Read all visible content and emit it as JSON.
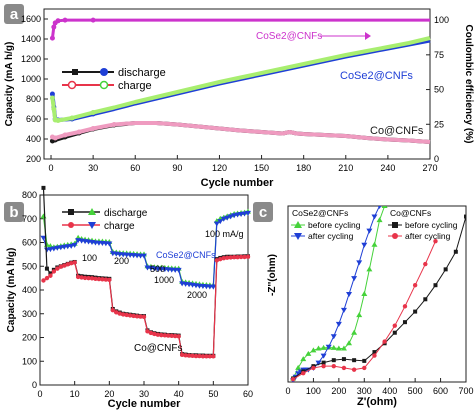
{
  "colors": {
    "black": "#1a1a1a",
    "blue": "#1f3fd6",
    "red": "#e8344a",
    "green": "#45d23a",
    "magenta": "#cc33cc",
    "pink": "#ef9bc0",
    "lightgreen": "#a8ee70",
    "panel_label_bg": "#8a8a8a"
  },
  "chart_data": [
    {
      "panel": "a",
      "type": "line",
      "xlabel": "Cycle number",
      "ylabel": "Capacity (mA h/g)",
      "y2label": "Coulombic efficiency (%)",
      "xlim": [
        -5,
        270
      ],
      "ylim": [
        200,
        1700
      ],
      "y2lim": [
        0,
        108
      ],
      "xticks": [
        "0",
        "30",
        "60",
        "90",
        "120",
        "150",
        "180",
        "210",
        "240",
        "270"
      ],
      "yticks": [
        "200",
        "400",
        "600",
        "800",
        "1000",
        "1200",
        "1400",
        "1600"
      ],
      "y2ticks": [
        "0",
        "25",
        "50",
        "75",
        "100"
      ],
      "legend": [
        "discharge",
        "charge"
      ],
      "grid": false,
      "annotations": [
        "CoSe2@CNFs",
        "CoSe2@CNFs",
        "Co@CNFs"
      ],
      "series": [
        {
          "name": "CoSe2@CNFs",
          "axis": "right",
          "color": "#cc33cc",
          "x": [
            1,
            2,
            3,
            5,
            10,
            30,
            60,
            90,
            120,
            150,
            180,
            210,
            240,
            270
          ],
          "values": [
            87,
            95,
            98,
            99.5,
            100,
            100,
            100,
            100,
            100,
            100,
            100,
            100,
            100,
            100
          ]
        },
        {
          "name": "CoSe2@CNFs",
          "kind": "discharge",
          "color": "#1f3fd6",
          "x": [
            1,
            2,
            3,
            5,
            15,
            30,
            45,
            60,
            75,
            90,
            105,
            120,
            135,
            150,
            165,
            180,
            195,
            210,
            225,
            240,
            255,
            270
          ],
          "values": [
            850,
            720,
            600,
            590,
            600,
            650,
            700,
            755,
            805,
            855,
            905,
            955,
            1000,
            1045,
            1090,
            1135,
            1180,
            1225,
            1265,
            1305,
            1345,
            1385
          ]
        },
        {
          "name": "CoSe2@CNFs",
          "kind": "charge",
          "color": "#a8ee70",
          "x": [
            1,
            2,
            3,
            5,
            15,
            30,
            45,
            60,
            75,
            90,
            105,
            120,
            135,
            150,
            165,
            180,
            195,
            210,
            225,
            240,
            255,
            270
          ],
          "values": [
            810,
            700,
            590,
            585,
            610,
            665,
            715,
            770,
            820,
            870,
            920,
            970,
            1015,
            1060,
            1105,
            1150,
            1195,
            1240,
            1280,
            1320,
            1360,
            1410
          ]
        },
        {
          "name": "Co@CNFs",
          "kind": "discharge",
          "color": "#1a1a1a",
          "x": [
            1,
            3,
            10,
            20,
            30,
            45,
            60,
            75,
            90,
            105,
            120,
            135,
            150,
            165,
            170,
            175,
            180,
            195,
            210,
            225,
            240,
            255,
            270
          ],
          "values": [
            380,
            390,
            420,
            460,
            500,
            540,
            560,
            560,
            545,
            525,
            505,
            485,
            470,
            455,
            470,
            455,
            450,
            440,
            430,
            410,
            395,
            385,
            370
          ]
        },
        {
          "name": "Co@CNFs",
          "kind": "charge",
          "color": "#ef9bc0",
          "x": [
            1,
            3,
            10,
            20,
            30,
            45,
            60,
            75,
            90,
            105,
            120,
            135,
            150,
            165,
            170,
            175,
            180,
            195,
            210,
            225,
            240,
            255,
            270
          ],
          "values": [
            420,
            410,
            440,
            470,
            505,
            545,
            560,
            560,
            545,
            525,
            505,
            485,
            470,
            455,
            470,
            455,
            450,
            440,
            430,
            410,
            395,
            385,
            370
          ]
        }
      ]
    },
    {
      "panel": "b",
      "type": "line",
      "xlabel": "Cycle number",
      "ylabel": "Capacity (mA h/g)",
      "xlim": [
        0,
        60
      ],
      "ylim": [
        0,
        800
      ],
      "xticks": [
        "0",
        "10",
        "20",
        "30",
        "40",
        "50",
        "60"
      ],
      "yticks": [
        "0",
        "100",
        "200",
        "300",
        "400",
        "500",
        "600",
        "700",
        "800"
      ],
      "legend": [
        "discharge",
        "charge"
      ],
      "grid": false,
      "rate_labels": [
        "100",
        "200",
        "500",
        "1000",
        "2000",
        "100 mA/g"
      ],
      "annotations": [
        "CoSe2@CNFs",
        "Co@CNFs"
      ],
      "series": [
        {
          "name": "CoSe2@CNFs",
          "kind": "discharge",
          "color": "#45d23a",
          "x": [
            1,
            2,
            3,
            4,
            5,
            6,
            7,
            8,
            9,
            10,
            11,
            12,
            13,
            14,
            15,
            16,
            17,
            18,
            19,
            20,
            21,
            22,
            23,
            24,
            25,
            26,
            27,
            28,
            29,
            30,
            31,
            32,
            33,
            34,
            35,
            36,
            37,
            38,
            39,
            40,
            41,
            42,
            43,
            44,
            45,
            46,
            47,
            48,
            49,
            50,
            51,
            52,
            53,
            54,
            55,
            56,
            57,
            58,
            59,
            60
          ],
          "values": [
            710,
            590,
            585,
            580,
            582,
            585,
            588,
            590,
            592,
            595,
            620,
            615,
            612,
            610,
            608,
            605,
            605,
            604,
            603,
            602,
            560,
            558,
            556,
            555,
            554,
            553,
            552,
            551,
            550,
            550,
            500,
            498,
            496,
            495,
            494,
            493,
            492,
            491,
            490,
            490,
            435,
            432,
            430,
            428,
            426,
            424,
            422,
            421,
            420,
            420,
            690,
            700,
            705,
            710,
            715,
            720,
            722,
            724,
            726,
            730
          ]
        },
        {
          "name": "CoSe2@CNFs",
          "kind": "charge",
          "color": "#1f3fd6",
          "x": [
            1,
            2,
            3,
            4,
            5,
            6,
            7,
            8,
            9,
            10,
            11,
            12,
            13,
            14,
            15,
            16,
            17,
            18,
            19,
            20,
            21,
            22,
            23,
            24,
            25,
            26,
            27,
            28,
            29,
            30,
            31,
            32,
            33,
            34,
            35,
            36,
            37,
            38,
            39,
            40,
            41,
            42,
            43,
            44,
            45,
            46,
            47,
            48,
            49,
            50,
            51,
            52,
            53,
            54,
            55,
            56,
            57,
            58,
            59,
            60
          ],
          "values": [
            620,
            570,
            572,
            575,
            578,
            580,
            582,
            584,
            586,
            590,
            610,
            608,
            606,
            604,
            602,
            600,
            599,
            598,
            597,
            596,
            555,
            553,
            551,
            550,
            549,
            548,
            547,
            546,
            545,
            545,
            495,
            493,
            491,
            490,
            489,
            488,
            487,
            486,
            485,
            485,
            428,
            426,
            424,
            422,
            420,
            418,
            417,
            416,
            415,
            414,
            680,
            690,
            700,
            705,
            710,
            715,
            718,
            720,
            722,
            725
          ]
        },
        {
          "name": "Co@CNFs",
          "kind": "discharge",
          "color": "#1a1a1a",
          "x": [
            1,
            2,
            3,
            4,
            5,
            6,
            7,
            8,
            9,
            10,
            11,
            12,
            13,
            14,
            15,
            16,
            17,
            18,
            19,
            20,
            21,
            22,
            23,
            24,
            25,
            26,
            27,
            28,
            29,
            30,
            31,
            32,
            33,
            34,
            35,
            36,
            37,
            38,
            39,
            40,
            41,
            42,
            43,
            44,
            45,
            46,
            47,
            48,
            49,
            50,
            51,
            52,
            53,
            54,
            55,
            56,
            57,
            58,
            59,
            60
          ],
          "values": [
            830,
            490,
            470,
            485,
            495,
            500,
            505,
            510,
            515,
            518,
            460,
            458,
            456,
            455,
            454,
            452,
            450,
            449,
            448,
            447,
            320,
            310,
            305,
            300,
            298,
            296,
            294,
            292,
            290,
            290,
            230,
            222,
            218,
            215,
            213,
            212,
            210,
            210,
            209,
            208,
            130,
            128,
            126,
            125,
            125,
            124,
            124,
            123,
            123,
            123,
            530,
            535,
            538,
            540,
            540,
            540,
            541,
            541,
            542,
            542
          ]
        },
        {
          "name": "Co@CNFs",
          "kind": "charge",
          "color": "#e8344a",
          "x": [
            1,
            2,
            3,
            4,
            5,
            6,
            7,
            8,
            9,
            10,
            11,
            12,
            13,
            14,
            15,
            16,
            17,
            18,
            19,
            20,
            21,
            22,
            23,
            24,
            25,
            26,
            27,
            28,
            29,
            30,
            31,
            32,
            33,
            34,
            35,
            36,
            37,
            38,
            39,
            40,
            41,
            42,
            43,
            44,
            45,
            46,
            47,
            48,
            49,
            50,
            51,
            52,
            53,
            54,
            55,
            56,
            57,
            58,
            59,
            60
          ],
          "values": [
            440,
            450,
            460,
            478,
            490,
            498,
            503,
            508,
            513,
            516,
            455,
            453,
            451,
            450,
            449,
            447,
            446,
            445,
            444,
            443,
            315,
            306,
            301,
            297,
            295,
            293,
            291,
            289,
            288,
            287,
            226,
            219,
            215,
            212,
            210,
            209,
            208,
            207,
            206,
            205,
            127,
            125,
            124,
            123,
            122,
            122,
            121,
            121,
            121,
            121,
            525,
            530,
            534,
            536,
            537,
            538,
            538,
            539,
            539,
            540
          ]
        }
      ]
    },
    {
      "panel": "c",
      "type": "scatter",
      "xlabel": "Z'(ohm)",
      "ylabel": "-Z''(ohm)",
      "xlim": [
        0,
        700
      ],
      "ylim": [
        0,
        500
      ],
      "xticks": [
        "0",
        "100",
        "200",
        "300",
        "400",
        "500",
        "600",
        "700"
      ],
      "legend_groups": [
        {
          "title": "CoSe2@CNFs",
          "entries": [
            "before cycling",
            "after cycling"
          ]
        },
        {
          "title": "Co@CNFs",
          "entries": [
            "before cycling",
            "after cycling"
          ]
        }
      ],
      "series": [
        {
          "group": "CoSe2@CNFs",
          "name": "before cycling",
          "color": "#45d23a",
          "x": [
            20,
            40,
            60,
            80,
            100,
            120,
            140,
            160,
            180,
            200,
            220,
            240,
            260,
            280,
            300,
            320,
            340,
            360,
            380
          ],
          "values": [
            10,
            40,
            65,
            80,
            90,
            95,
            97,
            98,
            97,
            95,
            95,
            110,
            140,
            190,
            250,
            320,
            390,
            460,
            500
          ]
        },
        {
          "group": "CoSe2@CNFs",
          "name": "after cycling",
          "color": "#1f3fd6",
          "x": [
            20,
            30,
            40,
            50,
            60,
            70,
            80,
            100,
            120,
            140,
            160,
            180,
            200,
            220,
            240,
            260,
            280,
            300,
            320,
            340,
            360
          ],
          "values": [
            5,
            15,
            25,
            30,
            35,
            35,
            35,
            40,
            55,
            75,
            100,
            130,
            165,
            205,
            250,
            295,
            340,
            390,
            430,
            470,
            500
          ]
        },
        {
          "group": "Co@CNFs",
          "name": "before cycling",
          "color": "#1a1a1a",
          "x": [
            20,
            60,
            100,
            140,
            180,
            220,
            260,
            300,
            340,
            380,
            420,
            460,
            500,
            540,
            580,
            620,
            660,
            700
          ],
          "values": [
            10,
            30,
            45,
            55,
            62,
            65,
            62,
            60,
            85,
            110,
            140,
            170,
            200,
            235,
            275,
            320,
            370,
            470
          ]
        },
        {
          "group": "Co@CNFs",
          "name": "after cycling",
          "color": "#e8344a",
          "x": [
            20,
            60,
            100,
            140,
            180,
            220,
            260,
            300,
            340,
            380,
            420,
            460,
            500,
            540,
            580
          ],
          "values": [
            8,
            25,
            40,
            45,
            45,
            40,
            35,
            40,
            75,
            115,
            160,
            215,
            275,
            335,
            400
          ]
        }
      ]
    }
  ]
}
